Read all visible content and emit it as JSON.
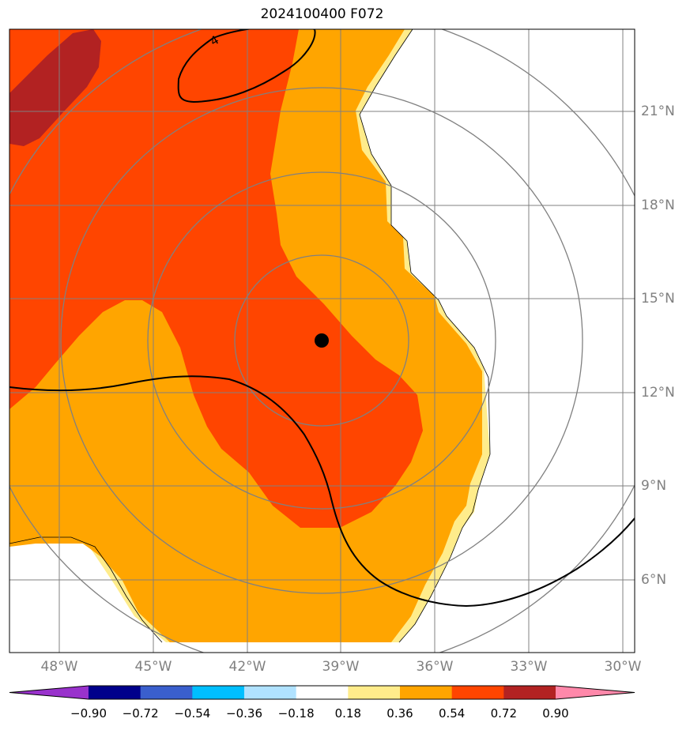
{
  "title": "2024100400 F072",
  "map": {
    "lat_labels": [
      "21°N",
      "18°N",
      "15°N",
      "12°N",
      "9°N",
      "6°N"
    ],
    "lon_labels": [
      "48°W",
      "45°W",
      "42°W",
      "39°W",
      "36°W",
      "33°W",
      "30°W"
    ],
    "contour_labels": [
      "4"
    ],
    "grid_color": "#808080",
    "storm_center": {
      "lon": -39.6,
      "lat": 13.6
    }
  },
  "colorbar": {
    "tick_labels": [
      "−0.90",
      "−0.72",
      "−0.54",
      "−0.36",
      "−0.18",
      "0.18",
      "0.36",
      "0.54",
      "0.72",
      "0.90"
    ],
    "colors": [
      "#9932CC",
      "#00008B",
      "#3A5FCD",
      "#00BFFF",
      "#B0E2FF",
      "#FFFFFF",
      "#FFEC8B",
      "#FFA500",
      "#FF4500",
      "#B22222",
      "#FF88AA"
    ],
    "extend": "both"
  },
  "fill_colors": {
    "light_yellow": "#FFEC8B",
    "orange": "#FFA500",
    "red_orange": "#FF4500",
    "dark_red": "#B22222"
  }
}
